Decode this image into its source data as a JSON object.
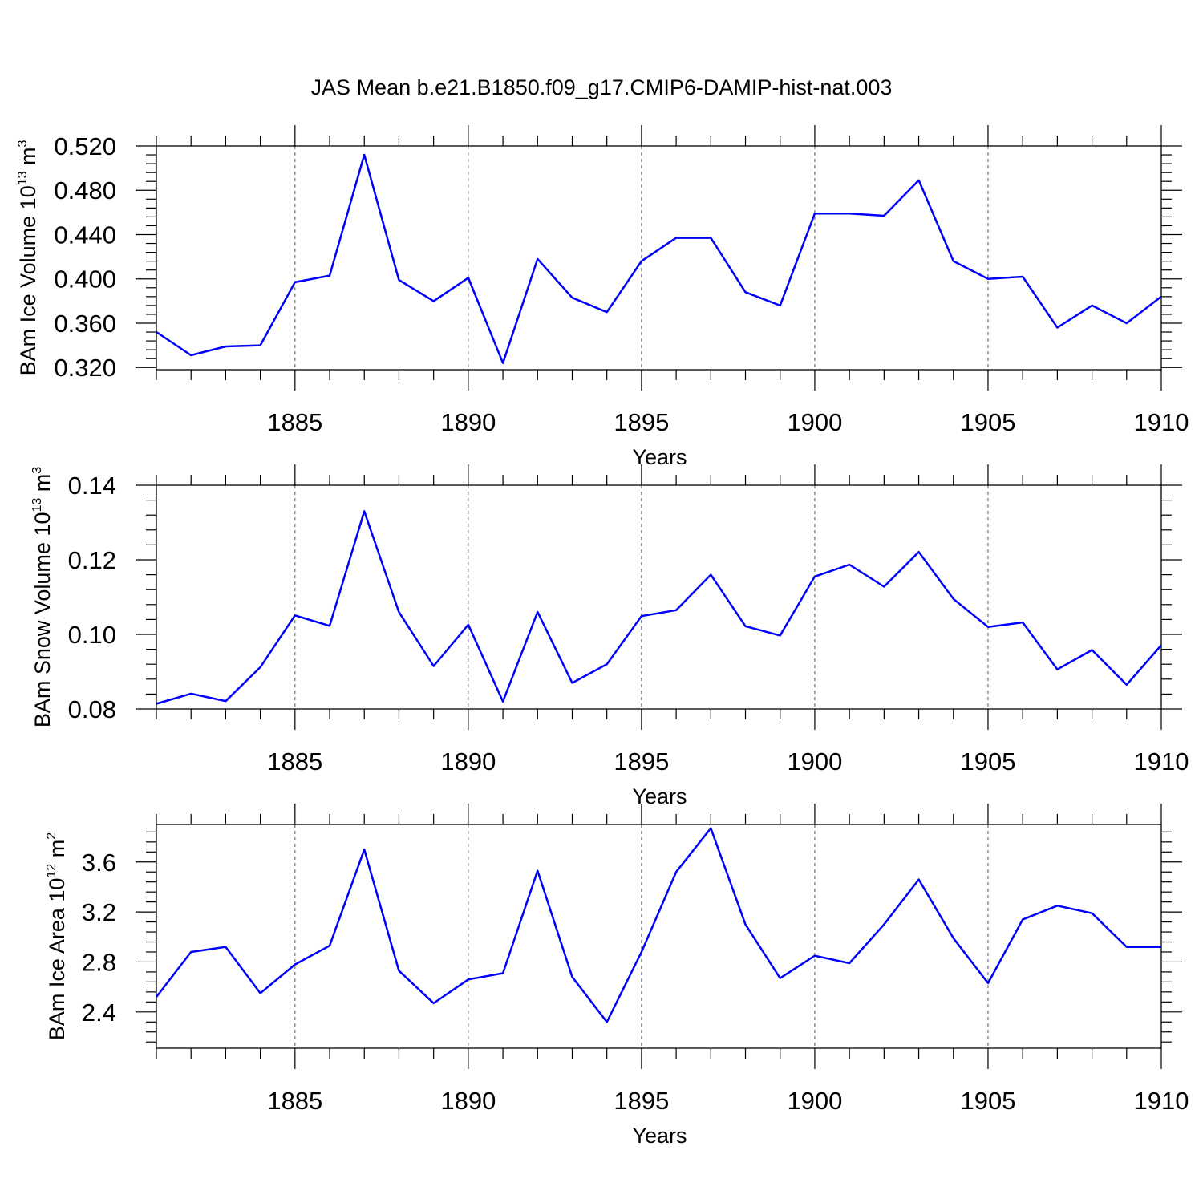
{
  "title": "JAS Mean b.e21.B1850.f09_g17.CMIP6-DAMIP-hist-nat.003",
  "colors": {
    "series": "#0000ff",
    "axis": "#000000",
    "grid": "#555555"
  },
  "chart_data": [
    {
      "type": "line",
      "name": "ice-volume",
      "ylabel": {
        "base": "BAm Ice Volume 10",
        "exp1": "13",
        "unit": " m",
        "exp2": "3"
      },
      "xlabel": "Years",
      "xlim": [
        1881,
        1910
      ],
      "ylim": [
        0.318,
        0.52
      ],
      "xticks": [
        1885,
        1890,
        1895,
        1900,
        1905,
        1910
      ],
      "yticks": [
        0.32,
        0.36,
        0.4,
        0.44,
        0.48,
        0.52
      ],
      "ytick_labels": [
        "0.320",
        "0.360",
        "0.400",
        "0.440",
        "0.480",
        "0.520"
      ],
      "x": [
        1881,
        1882,
        1883,
        1884,
        1885,
        1886,
        1887,
        1888,
        1889,
        1890,
        1891,
        1892,
        1893,
        1894,
        1895,
        1896,
        1897,
        1898,
        1899,
        1900,
        1901,
        1902,
        1903,
        1904,
        1905,
        1906,
        1907,
        1908,
        1909,
        1910
      ],
      "values": [
        0.352,
        0.331,
        0.339,
        0.34,
        0.397,
        0.403,
        0.512,
        0.399,
        0.38,
        0.401,
        0.324,
        0.418,
        0.383,
        0.37,
        0.416,
        0.437,
        0.437,
        0.388,
        0.376,
        0.459,
        0.459,
        0.457,
        0.489,
        0.416,
        0.4,
        0.402,
        0.356,
        0.376,
        0.36,
        0.384
      ]
    },
    {
      "type": "line",
      "name": "snow-volume",
      "ylabel": {
        "base": "BAm Snow Volume 10",
        "exp1": "13",
        "unit": " m",
        "exp2": "3"
      },
      "xlabel": "Years",
      "xlim": [
        1881,
        1910
      ],
      "ylim": [
        0.08,
        0.14
      ],
      "xticks": [
        1885,
        1890,
        1895,
        1900,
        1905,
        1910
      ],
      "yticks": [
        0.08,
        0.1,
        0.12,
        0.14
      ],
      "ytick_labels": [
        "0.08",
        "0.10",
        "0.12",
        "0.14"
      ],
      "x": [
        1881,
        1882,
        1883,
        1884,
        1885,
        1886,
        1887,
        1888,
        1889,
        1890,
        1891,
        1892,
        1893,
        1894,
        1895,
        1896,
        1897,
        1898,
        1899,
        1900,
        1901,
        1902,
        1903,
        1904,
        1905,
        1906,
        1907,
        1908,
        1909,
        1910
      ],
      "values": [
        0.0814,
        0.0841,
        0.0821,
        0.0912,
        0.1051,
        0.1023,
        0.133,
        0.106,
        0.0915,
        0.1026,
        0.082,
        0.106,
        0.087,
        0.092,
        0.1049,
        0.1065,
        0.116,
        0.1022,
        0.0997,
        0.1155,
        0.1187,
        0.1128,
        0.1221,
        0.1095,
        0.102,
        0.1032,
        0.0906,
        0.0958,
        0.0865,
        0.0971
      ]
    },
    {
      "type": "line",
      "name": "ice-area",
      "ylabel": {
        "base": "BAm Ice Area 10",
        "exp1": "12",
        "unit": " m",
        "exp2": "2"
      },
      "xlabel": "Years",
      "xlim": [
        1881,
        1910
      ],
      "ylim": [
        2.11,
        3.9
      ],
      "xticks": [
        1885,
        1890,
        1895,
        1900,
        1905,
        1910
      ],
      "yticks": [
        2.4,
        2.8,
        3.2,
        3.6
      ],
      "ytick_labels": [
        "2.4",
        "2.8",
        "3.2",
        "3.6"
      ],
      "x": [
        1881,
        1882,
        1883,
        1884,
        1885,
        1886,
        1887,
        1888,
        1889,
        1890,
        1891,
        1892,
        1893,
        1894,
        1895,
        1896,
        1897,
        1898,
        1899,
        1900,
        1901,
        1902,
        1903,
        1904,
        1905,
        1906,
        1907,
        1908,
        1909,
        1910
      ],
      "values": [
        2.52,
        2.88,
        2.92,
        2.55,
        2.78,
        2.93,
        3.7,
        2.73,
        2.47,
        2.66,
        2.71,
        3.53,
        2.68,
        2.32,
        2.88,
        3.52,
        3.87,
        3.1,
        2.67,
        2.85,
        2.79,
        3.1,
        3.46,
        2.99,
        2.63,
        3.14,
        3.25,
        3.19,
        2.92,
        2.92
      ]
    }
  ]
}
